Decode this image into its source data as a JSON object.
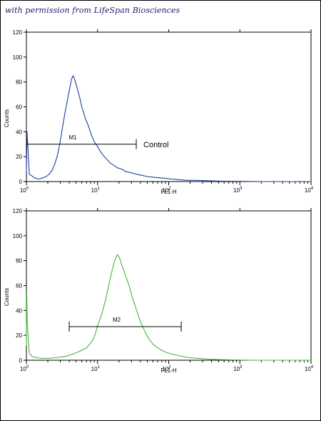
{
  "credit": "with permission from LifeSpan Biosciences",
  "chart_data": [
    {
      "type": "line",
      "xlabel": "FL1-H",
      "ylabel": "Counts",
      "xscale": "log",
      "xlim": [
        1,
        10000
      ],
      "ylim": [
        0,
        120
      ],
      "xticks": [
        "10",
        "10",
        "10",
        "10",
        "10"
      ],
      "xtick_exponents": [
        "0",
        "1",
        "2",
        "3",
        "4"
      ],
      "yticks": [
        "0",
        "20",
        "40",
        "60",
        "80",
        "100",
        "120"
      ],
      "grid": false,
      "color": "#1f3f9b",
      "marker": {
        "label": "M1",
        "x_start": 1.0,
        "x_end": 35
      },
      "annotation": "Control",
      "series": [
        {
          "x": [
            1.0,
            1.02,
            1.1,
            1.3,
            1.5,
            1.7,
            1.9,
            2.1,
            2.3,
            2.5,
            2.7,
            2.9,
            3.1,
            3.3,
            3.5,
            3.7,
            3.9,
            4.1,
            4.3,
            4.5,
            4.7,
            4.9,
            5.1,
            5.4,
            5.7,
            6.0,
            6.4,
            6.8,
            7.3,
            7.8,
            8.4,
            9.0,
            10,
            11,
            12,
            13.5,
            15,
            17,
            19,
            22,
            25,
            30,
            35,
            42,
            50,
            60,
            75,
            90,
            110,
            140,
            180,
            230,
            300,
            400,
            600,
            1000,
            2000,
            5000,
            10000
          ],
          "values": [
            8,
            40,
            6,
            3,
            2,
            3,
            4,
            6,
            9,
            14,
            20,
            28,
            38,
            47,
            56,
            63,
            70,
            76,
            82,
            85,
            83,
            80,
            76,
            71,
            66,
            60,
            55,
            50,
            46,
            41,
            36,
            32,
            28,
            24,
            21,
            18,
            15,
            13,
            11,
            10,
            8,
            7,
            6,
            5,
            4,
            3.5,
            3,
            2.5,
            2,
            1.5,
            1,
            1,
            0.8,
            0.5,
            0.3,
            0.2,
            0,
            0,
            0
          ]
        }
      ]
    },
    {
      "type": "line",
      "xlabel": "FL1-H",
      "ylabel": "Counts",
      "xscale": "log",
      "xlim": [
        1,
        10000
      ],
      "ylim": [
        0,
        120
      ],
      "xticks": [
        "10",
        "10",
        "10",
        "10",
        "10"
      ],
      "xtick_exponents": [
        "0",
        "1",
        "2",
        "3",
        "4"
      ],
      "yticks": [
        "0",
        "20",
        "40",
        "60",
        "80",
        "100",
        "120"
      ],
      "grid": false,
      "color": "#44b83a",
      "marker": {
        "label": "M2",
        "x_start": 4.0,
        "x_end": 150
      },
      "series": [
        {
          "x": [
            1.0,
            1.01,
            1.03,
            1.06,
            1.1,
            1.2,
            1.4,
            1.7,
            2,
            2.5,
            3,
            3.5,
            4,
            4.5,
            5,
            5.5,
            6,
            6.5,
            7,
            7.5,
            8,
            8.5,
            9,
            9.5,
            10,
            11,
            12,
            13,
            14,
            15,
            16,
            17,
            18,
            19,
            20,
            21,
            22,
            23.5,
            25,
            27,
            29,
            31,
            34,
            37,
            40,
            44,
            48,
            53,
            60,
            70,
            80,
            95,
            110,
            130,
            160,
            200,
            260,
            350,
            500,
            800,
            1500,
            3000,
            10000
          ],
          "values": [
            12,
            55,
            30,
            18,
            6,
            3,
            2,
            1.5,
            1.5,
            2,
            2.5,
            3,
            4,
            5,
            6,
            7,
            8,
            9,
            10,
            12,
            14,
            16,
            19,
            23,
            28,
            34,
            41,
            49,
            57,
            65,
            72,
            78,
            82,
            85,
            83,
            80,
            76,
            72,
            67,
            62,
            56,
            50,
            43,
            37,
            31,
            26,
            21,
            17,
            13,
            10,
            8,
            6,
            5,
            4,
            3,
            2,
            1.5,
            1,
            0.5,
            0.3,
            0,
            0,
            0
          ]
        }
      ]
    }
  ]
}
